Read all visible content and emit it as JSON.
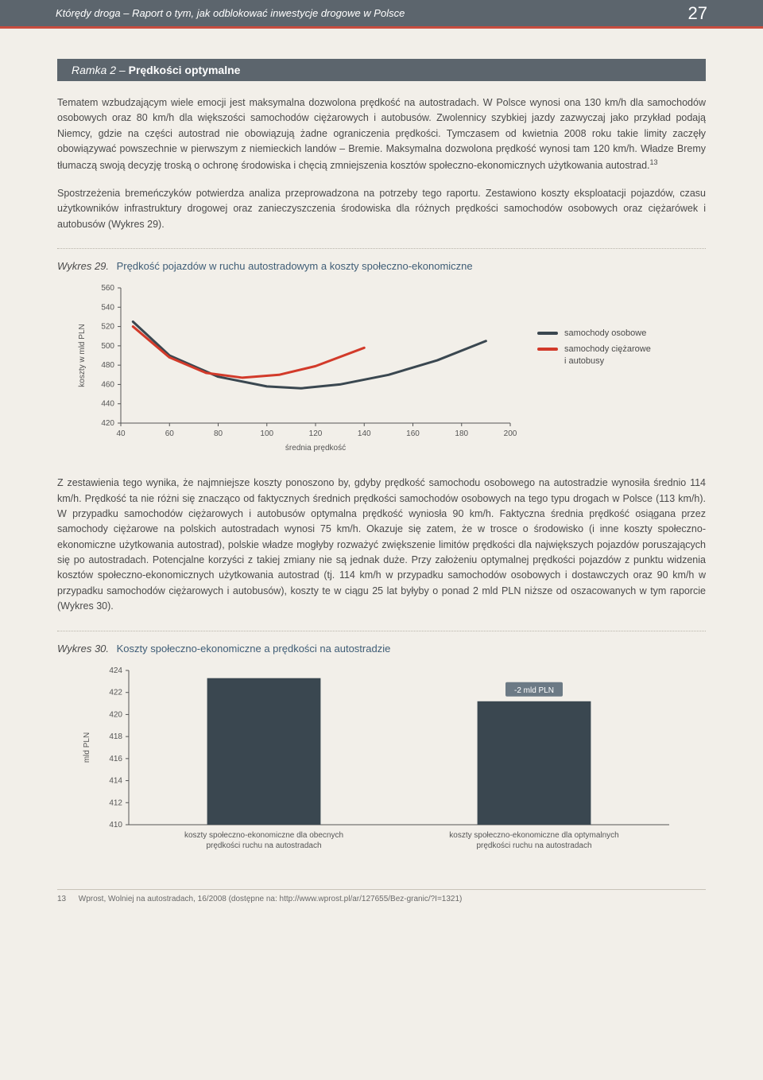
{
  "header": {
    "title": "Którędy droga – Raport o tym, jak odblokować inwestycje drogowe w Polsce",
    "page_number": "27"
  },
  "box2": {
    "label": "Ramka 2",
    "sep": "–",
    "title": "Prędkości optymalne",
    "para1": "Tematem wzbudzającym wiele emocji jest maksymalna dozwolona prędkość na autostradach. W Polsce wynosi ona 130 km/h dla samochodów osobowych oraz 80 km/h dla większości samochodów ciężarowych i autobusów. Zwolennicy szybkiej jazdy zazwyczaj jako przykład podają Niemcy, gdzie na części autostrad nie obowiązują żadne ograniczenia prędkości. Tymczasem od kwietnia 2008 roku takie limity zaczęły obowiązywać powszechnie w pierwszym z niemieckich landów – Bremie. Maksymalna dozwolona prędkość wynosi tam 120 km/h. Władze Bremy tłumaczą swoją decyzję troską o ochronę środowiska i chęcią zmniejszenia kosztów społeczno-ekonomicznych użytkowania autostrad.",
    "fn_mark": "13",
    "para2": "Spostrzeżenia bremeńczyków potwierdza analiza przeprowadzona na potrzeby tego raportu. Zestawiono koszty eksploatacji pojazdów, czasu użytkowników infrastruktury drogowej oraz zanieczyszczenia środowiska dla różnych prędkości samochodów osobowych oraz ciężarówek i autobusów (Wykres 29)."
  },
  "chart29": {
    "label": "Wykres 29.",
    "title": "Prędkość pojazdów w ruchu autostradowym a koszty społeczno-ekonomiczne",
    "type": "line",
    "y_label": "koszty w mld PLN",
    "x_label": "średnia prędkość",
    "ylim": [
      420,
      560
    ],
    "ytick_step": 20,
    "yticks": [
      "420",
      "440",
      "460",
      "480",
      "500",
      "520",
      "540",
      "560"
    ],
    "xlim": [
      40,
      200
    ],
    "xtick_step": 20,
    "xticks": [
      "40",
      "60",
      "80",
      "100",
      "120",
      "140",
      "160",
      "180",
      "200"
    ],
    "background_color": "#f2efe9",
    "axis_color": "#555555",
    "tick_fontsize": 10,
    "label_fontsize": 10,
    "line_width": 3,
    "series": [
      {
        "name": "samochody osobowe",
        "color": "#3a4750",
        "points": [
          [
            45,
            525
          ],
          [
            60,
            490
          ],
          [
            80,
            468
          ],
          [
            100,
            458
          ],
          [
            114,
            456
          ],
          [
            130,
            460
          ],
          [
            150,
            470
          ],
          [
            170,
            485
          ],
          [
            190,
            505
          ]
        ]
      },
      {
        "name": "samochody ciężarowe i autobusy",
        "color": "#d23a2a",
        "points": [
          [
            45,
            520
          ],
          [
            60,
            488
          ],
          [
            75,
            472
          ],
          [
            90,
            467
          ],
          [
            105,
            470
          ],
          [
            120,
            479
          ],
          [
            140,
            498
          ]
        ]
      }
    ],
    "legend": [
      {
        "label": "samochody osobowe",
        "color": "#3a4750"
      },
      {
        "label": "samochody ciężarowe i autobusy",
        "color": "#d23a2a",
        "break": true,
        "line2": "i autobusy",
        "line1": "samochody ciężarowe"
      }
    ]
  },
  "para3": "Z zestawienia tego wynika, że najmniejsze koszty ponoszono by, gdyby prędkość samochodu osobowego na autostradzie wynosiła średnio 114 km/h. Prędkość ta nie różni się znacząco od faktycznych średnich prędkości samochodów osobowych na tego typu drogach w Polsce (113 km/h). W przypadku samochodów ciężarowych i autobusów optymalna prędkość wyniosła 90 km/h. Faktyczna średnia prędkość osiągana przez samochody ciężarowe na polskich autostradach wynosi 75 km/h. Okazuje się zatem, że w trosce o środowisko (i inne koszty społeczno-ekonomiczne użytkowania autostrad), polskie władze mogłyby rozważyć zwiększenie limitów prędkości dla największych pojazdów poruszających się po autostradach. Potencjalne korzyści z takiej zmiany nie są jednak duże. Przy założeniu optymalnej prędkości pojazdów z punktu widzenia kosztów społeczno-ekonomicznych użytkowania autostrad (tj. 114 km/h w przypadku samochodów osobowych i dostawczych oraz 90 km/h w przypadku samochodów ciężarowych i autobusów), koszty te w ciągu 25 lat byłyby o ponad 2 mld PLN niższe od oszacowanych w tym raporcie (Wykres 30).",
  "chart30": {
    "label": "Wykres 30.",
    "title": "Koszty społeczno-ekonomiczne a prędkości na autostradzie",
    "type": "bar",
    "y_label": "mld PLN",
    "ylim": [
      410,
      424
    ],
    "ytick_step": 2,
    "yticks": [
      "410",
      "412",
      "414",
      "416",
      "418",
      "420",
      "422",
      "424"
    ],
    "background_color": "#f2efe9",
    "axis_color": "#555555",
    "bar_color": "#3a4750",
    "bar_width": 0.42,
    "callout_color": "#6c7a85",
    "callout_text": "-2 mld PLN",
    "bars": [
      {
        "label_l1": "koszty społeczno-ekonomiczne dla obecnych",
        "label_l2": "prędkości ruchu na autostradach",
        "value": 423.3
      },
      {
        "label_l1": "koszty społeczno-ekonomiczne dla optymalnych",
        "label_l2": "prędkości ruchu na autostradach",
        "value": 421.2
      }
    ]
  },
  "footnote": {
    "num": "13",
    "text": "Wprost, Wolniej na autostradach, 16/2008 (dostępne na: http://www.wprost.pl/ar/127655/Bez-granic/?I=1321)"
  }
}
